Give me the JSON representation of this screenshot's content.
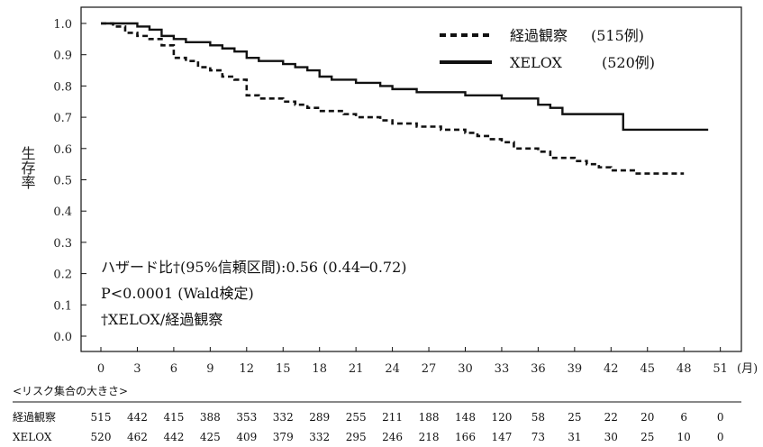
{
  "chart_data": {
    "type": "line",
    "step": true,
    "ylabel": "生存率",
    "xunit": "(月)",
    "xlim": [
      0,
      51
    ],
    "ylim": [
      0,
      1.0
    ],
    "xticks": [
      0,
      3,
      6,
      9,
      12,
      15,
      18,
      21,
      24,
      27,
      30,
      33,
      36,
      39,
      42,
      45,
      48,
      51
    ],
    "yticks": [
      "0.0",
      "0.1",
      "0.2",
      "0.3",
      "0.4",
      "0.5",
      "0.6",
      "0.7",
      "0.8",
      "0.9",
      "1.0"
    ],
    "grid": false,
    "legend_position": "top-right",
    "series": [
      {
        "name": "経過観察",
        "count_label": "(515例)",
        "style": "dashed",
        "x": [
          0,
          1,
          2,
          3,
          4,
          5,
          6,
          7,
          8,
          9,
          10,
          11,
          12,
          13,
          14,
          15,
          16,
          17,
          18,
          19,
          20,
          21,
          22,
          23,
          24,
          25,
          26,
          27,
          28,
          29,
          30,
          31,
          32,
          33,
          34,
          35,
          36,
          37,
          38,
          39,
          40,
          41,
          42,
          43,
          44,
          45,
          46,
          47,
          48
        ],
        "y": [
          1.0,
          0.99,
          0.97,
          0.96,
          0.95,
          0.93,
          0.89,
          0.88,
          0.86,
          0.85,
          0.83,
          0.82,
          0.77,
          0.76,
          0.76,
          0.75,
          0.74,
          0.73,
          0.72,
          0.72,
          0.71,
          0.7,
          0.7,
          0.69,
          0.68,
          0.68,
          0.67,
          0.67,
          0.66,
          0.66,
          0.65,
          0.64,
          0.63,
          0.62,
          0.6,
          0.6,
          0.59,
          0.57,
          0.57,
          0.56,
          0.55,
          0.54,
          0.53,
          0.53,
          0.52,
          0.52,
          0.52,
          0.52,
          0.52
        ]
      },
      {
        "name": "XELOX",
        "count_label": "(520例)",
        "style": "solid",
        "x": [
          0,
          1,
          2,
          3,
          4,
          5,
          6,
          7,
          8,
          9,
          10,
          11,
          12,
          13,
          14,
          15,
          16,
          17,
          18,
          19,
          20,
          21,
          22,
          23,
          24,
          25,
          26,
          27,
          28,
          29,
          30,
          31,
          32,
          33,
          34,
          35,
          36,
          37,
          38,
          39,
          40,
          41,
          42,
          43,
          44,
          45,
          46,
          47,
          48,
          49,
          50
        ],
        "y": [
          1.0,
          1.0,
          1.0,
          0.99,
          0.98,
          0.96,
          0.95,
          0.94,
          0.94,
          0.93,
          0.92,
          0.91,
          0.89,
          0.88,
          0.88,
          0.87,
          0.86,
          0.85,
          0.83,
          0.82,
          0.82,
          0.81,
          0.81,
          0.8,
          0.79,
          0.79,
          0.78,
          0.78,
          0.78,
          0.78,
          0.77,
          0.77,
          0.77,
          0.76,
          0.76,
          0.76,
          0.74,
          0.73,
          0.71,
          0.71,
          0.71,
          0.71,
          0.71,
          0.66,
          0.66,
          0.66,
          0.66,
          0.66,
          0.66,
          0.66,
          0.66
        ]
      }
    ],
    "annotations": [
      "ハザード比†(95%信頼区間):0.56 (0.44─0.72)",
      "P<0.0001 (Wald検定)",
      "†XELOX/経過観察"
    ],
    "risk_table": {
      "title": "<リスク集合の大きさ>",
      "rows": [
        {
          "name": "経過観察",
          "values": [
            "515",
            "442",
            "415",
            "388",
            "353",
            "332",
            "289",
            "255",
            "211",
            "188",
            "148",
            "120",
            "58",
            "25",
            "22",
            "20",
            "6",
            "0"
          ]
        },
        {
          "name": "XELOX",
          "values": [
            "520",
            "462",
            "442",
            "425",
            "409",
            "379",
            "332",
            "295",
            "246",
            "218",
            "166",
            "147",
            "73",
            "31",
            "30",
            "25",
            "10",
            "0"
          ]
        }
      ]
    }
  }
}
